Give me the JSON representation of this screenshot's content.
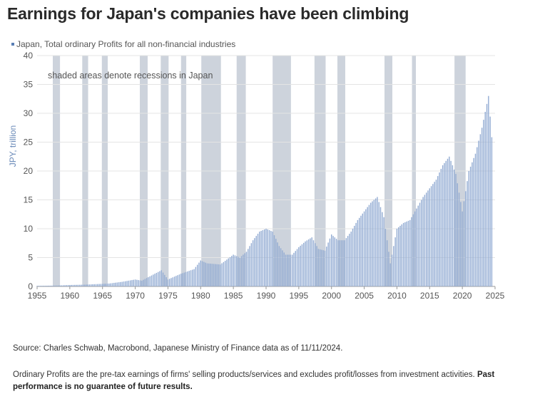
{
  "title": "Earnings for Japan's companies have been climbing",
  "source": "Source: Charles Schwab, Macrobond, Japanese Ministry of Finance data as of 11/11/2024.",
  "note": "Ordinary Profits are the pre-tax earnings of firms' selling products/services and excludes profit/losses from investment activities.",
  "note_bold": "Past performance is no guarantee of future results.",
  "colors": {
    "bars": "#93acd3",
    "recession": "#cdd3dc",
    "text": "#555555"
  },
  "chart_data": {
    "type": "bar",
    "title": "",
    "xlabel": "",
    "ylabel": "JPY, trillion",
    "ylim": [
      0,
      40
    ],
    "xlim": [
      1955,
      2025
    ],
    "yticks": [
      "0",
      "5",
      "10",
      "15",
      "20",
      "25",
      "30",
      "35",
      "40"
    ],
    "xticks": [
      "1955",
      "1960",
      "1965",
      "1970",
      "1975",
      "1980",
      "1985",
      "1990",
      "1995",
      "2000",
      "2005",
      "2010",
      "2015",
      "2020",
      "2025"
    ],
    "annotation": "shaded areas denote recessions in Japan",
    "grid": "horizontal",
    "legend": "top-left",
    "series": [
      {
        "name": "Japan, Total ordinary Profits for all non-financial industries",
        "points": [
          [
            1955,
            0.1
          ],
          [
            1958,
            0.15
          ],
          [
            1960,
            0.25
          ],
          [
            1962,
            0.3
          ],
          [
            1964,
            0.4
          ],
          [
            1966,
            0.5
          ],
          [
            1968,
            0.8
          ],
          [
            1970,
            1.2
          ],
          [
            1971,
            1.0
          ],
          [
            1973,
            2.2
          ],
          [
            1974,
            2.8
          ],
          [
            1975,
            1.2
          ],
          [
            1977,
            2.2
          ],
          [
            1979,
            3.0
          ],
          [
            1980,
            4.5
          ],
          [
            1981,
            4.0
          ],
          [
            1983,
            3.8
          ],
          [
            1985,
            5.5
          ],
          [
            1986,
            5.0
          ],
          [
            1987,
            6.0
          ],
          [
            1988,
            8.0
          ],
          [
            1989,
            9.5
          ],
          [
            1990,
            10.0
          ],
          [
            1991,
            9.5
          ],
          [
            1992,
            7.0
          ],
          [
            1993,
            5.5
          ],
          [
            1994,
            5.5
          ],
          [
            1995,
            6.8
          ],
          [
            1996,
            7.8
          ],
          [
            1997,
            8.5
          ],
          [
            1998,
            6.5
          ],
          [
            1999,
            6.2
          ],
          [
            2000,
            9.0
          ],
          [
            2001,
            8.0
          ],
          [
            2002,
            8.0
          ],
          [
            2003,
            9.5
          ],
          [
            2004,
            11.5
          ],
          [
            2005,
            13.0
          ],
          [
            2006,
            14.5
          ],
          [
            2007,
            15.5
          ],
          [
            2008,
            12.0
          ],
          [
            2009,
            4.0
          ],
          [
            2010,
            10.0
          ],
          [
            2011,
            11.0
          ],
          [
            2012,
            11.5
          ],
          [
            2013,
            13.5
          ],
          [
            2014,
            15.5
          ],
          [
            2015,
            17.0
          ],
          [
            2016,
            18.5
          ],
          [
            2017,
            21.0
          ],
          [
            2018,
            22.5
          ],
          [
            2019,
            19.5
          ],
          [
            2020,
            13.0
          ],
          [
            2021,
            20.0
          ],
          [
            2022,
            23.0
          ],
          [
            2023,
            27.5
          ],
          [
            2024,
            33.0
          ],
          [
            2024.7,
            23.0
          ]
        ]
      }
    ],
    "recessions": [
      [
        1957.4,
        1958.5
      ],
      [
        1961.9,
        1962.8
      ],
      [
        1964.9,
        1965.8
      ],
      [
        1970.7,
        1971.9
      ],
      [
        1973.9,
        1975.1
      ],
      [
        1977.0,
        1977.8
      ],
      [
        1980.1,
        1983.1
      ],
      [
        1985.5,
        1986.9
      ],
      [
        1991.0,
        1993.8
      ],
      [
        1997.4,
        1999.1
      ],
      [
        2000.9,
        2002.1
      ],
      [
        2008.1,
        2009.3
      ],
      [
        2012.3,
        2012.9
      ],
      [
        2018.8,
        2020.5
      ]
    ]
  }
}
